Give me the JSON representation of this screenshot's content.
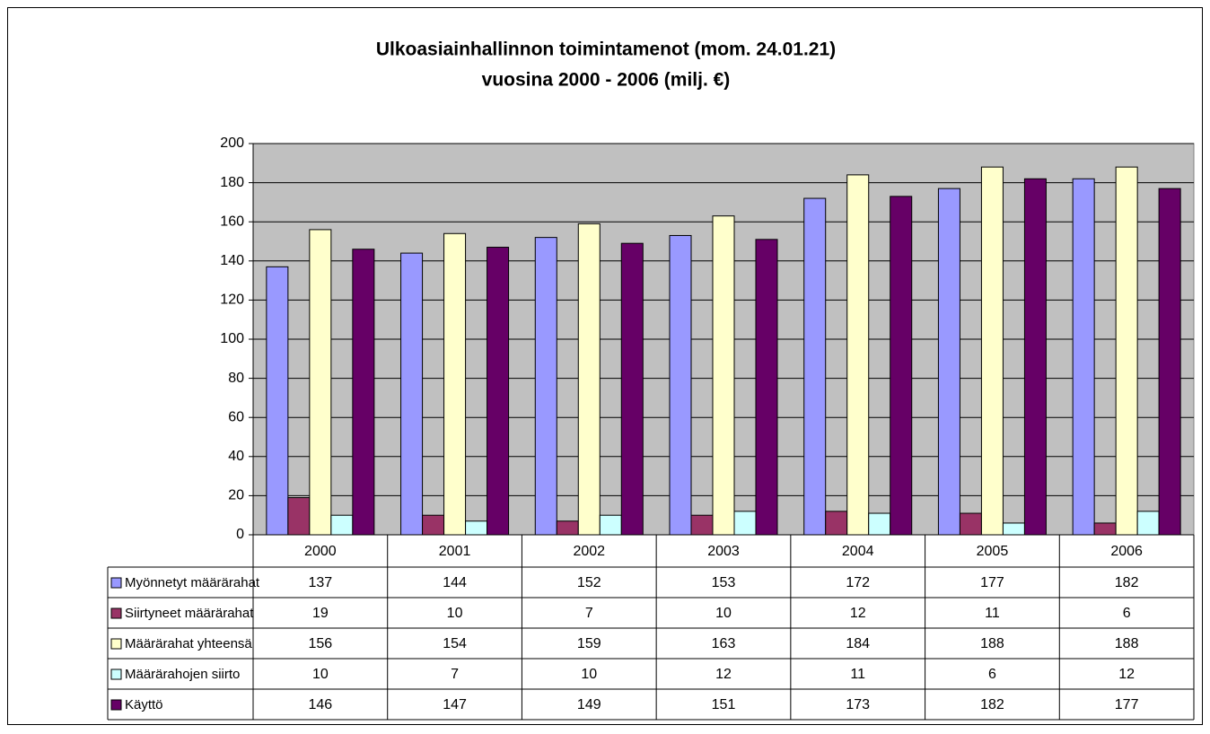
{
  "chart_data": {
    "type": "bar",
    "title": [
      "Ulkoasiainhallinnon toimintamenot (mom. 24.01.21)",
      "vuosina 2000 - 2006 (milj. €)"
    ],
    "categories": [
      "2000",
      "2001",
      "2002",
      "2003",
      "2004",
      "2005",
      "2006"
    ],
    "series": [
      {
        "name": "Myönnetyt määrärahat",
        "color": "#9999ff",
        "values": [
          137,
          144,
          152,
          153,
          172,
          177,
          182
        ]
      },
      {
        "name": "Siirtyneet määrärahat",
        "color": "#993366",
        "values": [
          19,
          10,
          7,
          10,
          12,
          11,
          6
        ]
      },
      {
        "name": "Määrärahat yhteensä",
        "color": "#ffffcc",
        "values": [
          156,
          154,
          159,
          163,
          184,
          188,
          188
        ]
      },
      {
        "name": "Määrärahojen siirto",
        "color": "#ccffff",
        "values": [
          10,
          7,
          10,
          12,
          11,
          6,
          12
        ]
      },
      {
        "name": "Käyttö",
        "color": "#660066",
        "values": [
          146,
          147,
          149,
          151,
          173,
          182,
          177
        ]
      }
    ],
    "ylim": [
      0,
      200
    ],
    "yticks": [
      0,
      20,
      40,
      60,
      80,
      100,
      120,
      140,
      160,
      180,
      200
    ],
    "grid": true,
    "plot_background": "#c0c0c0"
  }
}
